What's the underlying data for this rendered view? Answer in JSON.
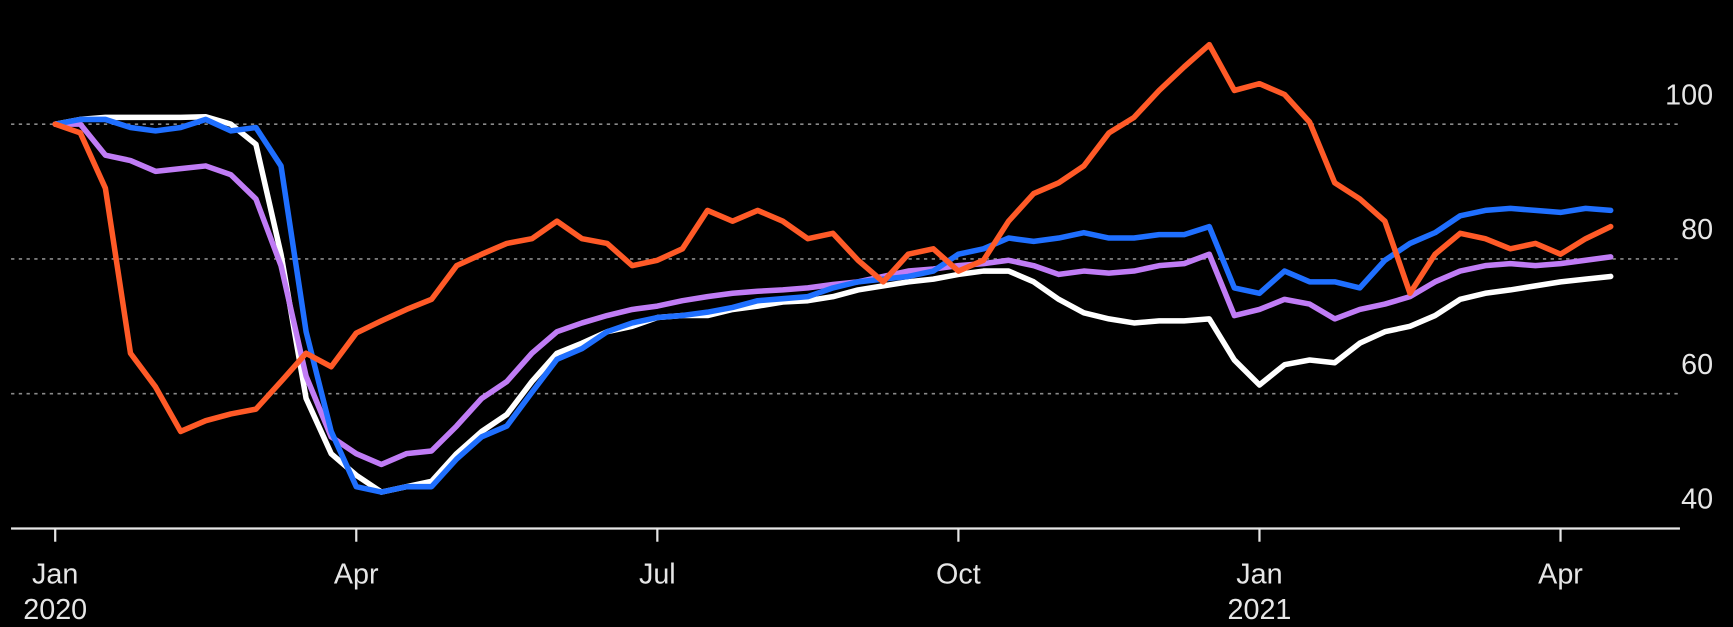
{
  "chart_data": {
    "type": "line",
    "x": [
      0,
      0.25,
      0.5,
      0.75,
      1,
      1.25,
      1.5,
      1.75,
      2,
      2.25,
      2.5,
      2.75,
      3,
      3.25,
      3.5,
      3.75,
      4,
      4.25,
      4.5,
      4.75,
      5,
      5.25,
      5.5,
      5.75,
      6,
      6.25,
      6.5,
      6.75,
      7,
      7.25,
      7.5,
      7.75,
      8,
      8.25,
      8.5,
      8.75,
      9,
      9.25,
      9.5,
      9.75,
      10,
      10.25,
      10.5,
      10.75,
      11,
      11.25,
      11.5,
      11.75,
      12,
      12.25,
      12.5,
      12.75,
      13,
      13.25,
      13.5,
      13.75,
      14,
      14.25,
      14.5,
      14.75,
      15,
      15.25,
      15.5
    ],
    "series": [
      {
        "color": "#ffffff",
        "values": [
          100,
          100.7,
          101,
          101,
          101,
          101,
          101.1,
          100,
          97,
          80.7,
          59.3,
          51.1,
          47.9,
          45.4,
          46.2,
          47,
          51.1,
          54.4,
          56.9,
          61.8,
          66,
          67.5,
          69.2,
          70,
          71.3,
          71.6,
          71.6,
          72.5,
          73,
          73.6,
          73.8,
          74.4,
          75.4,
          76,
          76.6,
          77,
          77.7,
          78.2,
          78.2,
          76.6,
          74,
          72,
          71.1,
          70.5,
          70.8,
          70.8,
          71.1,
          65,
          61.3,
          64.3,
          65,
          64.6,
          67.5,
          69.2,
          70,
          71.6,
          74,
          74.9,
          75.4,
          76,
          76.6,
          77,
          77.4
        ]
      },
      {
        "color": "#c07cf5",
        "values": [
          100,
          100,
          95.4,
          94.6,
          93,
          93.4,
          93.8,
          92.5,
          88.9,
          79,
          62.6,
          53.6,
          51.1,
          49.5,
          51.1,
          51.5,
          55.2,
          59.3,
          61.8,
          66,
          69.2,
          70.5,
          71.6,
          72.5,
          73,
          73.8,
          74.4,
          74.9,
          75.2,
          75.4,
          75.7,
          76.2,
          76.6,
          77.4,
          78.2,
          78.5,
          79,
          79.3,
          79.8,
          79,
          77.7,
          78.2,
          77.9,
          78.2,
          79,
          79.3,
          80.7,
          71.6,
          72.5,
          74,
          73.3,
          71.1,
          72.5,
          73.3,
          74.4,
          76.6,
          78.2,
          79,
          79.3,
          79,
          79.3,
          79.8,
          80.3
        ]
      },
      {
        "color": "#1f6fff",
        "values": [
          100,
          100.7,
          100.7,
          99.5,
          99,
          99.5,
          100.7,
          99,
          99.5,
          93.8,
          69.2,
          54.4,
          46.2,
          45.4,
          46.2,
          46.2,
          50.3,
          53.6,
          55.2,
          60.2,
          65.1,
          66.7,
          69.2,
          70.5,
          71.3,
          71.6,
          72.1,
          72.8,
          73.8,
          74.1,
          74.4,
          75.7,
          76.6,
          77,
          77.4,
          78.2,
          80.7,
          81.5,
          83.1,
          82.6,
          83.1,
          83.9,
          83.1,
          83.1,
          83.6,
          83.6,
          84.8,
          75.7,
          74.9,
          78.2,
          76.6,
          76.6,
          75.7,
          79.8,
          82.3,
          83.9,
          86.4,
          87.2,
          87.5,
          87.2,
          86.9,
          87.5,
          87.2
        ]
      },
      {
        "color": "#ff5a27",
        "values": [
          100,
          98.7,
          90.5,
          66,
          61,
          54.4,
          56,
          57,
          57.7,
          61.8,
          66,
          64,
          69,
          70.8,
          72.5,
          74,
          79,
          80.7,
          82.3,
          83,
          85.6,
          83,
          82.3,
          79,
          79.8,
          81.5,
          87.2,
          85.6,
          87.2,
          85.6,
          83,
          83.8,
          79.8,
          76.6,
          80.7,
          81.5,
          78.2,
          79.8,
          85.6,
          89.7,
          91.3,
          93.8,
          98.7,
          101,
          105,
          108.5,
          111.8,
          105,
          106,
          104.4,
          100.3,
          91.3,
          88.9,
          85.6,
          74.9,
          80.7,
          83.8,
          83,
          81.5,
          82.3,
          80.7,
          83,
          84.8
        ]
      }
    ],
    "xlim": [
      -0.44,
      16.19
    ],
    "xticks": [
      {
        "value": 0,
        "label": "Jan",
        "year": "2020"
      },
      {
        "value": 3,
        "label": "Apr"
      },
      {
        "value": 6,
        "label": "Jul"
      },
      {
        "value": 9,
        "label": "Oct"
      },
      {
        "value": 12,
        "label": "Jan",
        "year": "2021"
      },
      {
        "value": 15,
        "label": "Apr"
      }
    ],
    "ylim": [
      40,
      118.4
    ],
    "yticks": [
      40,
      60,
      80,
      100
    ],
    "grid": true
  }
}
